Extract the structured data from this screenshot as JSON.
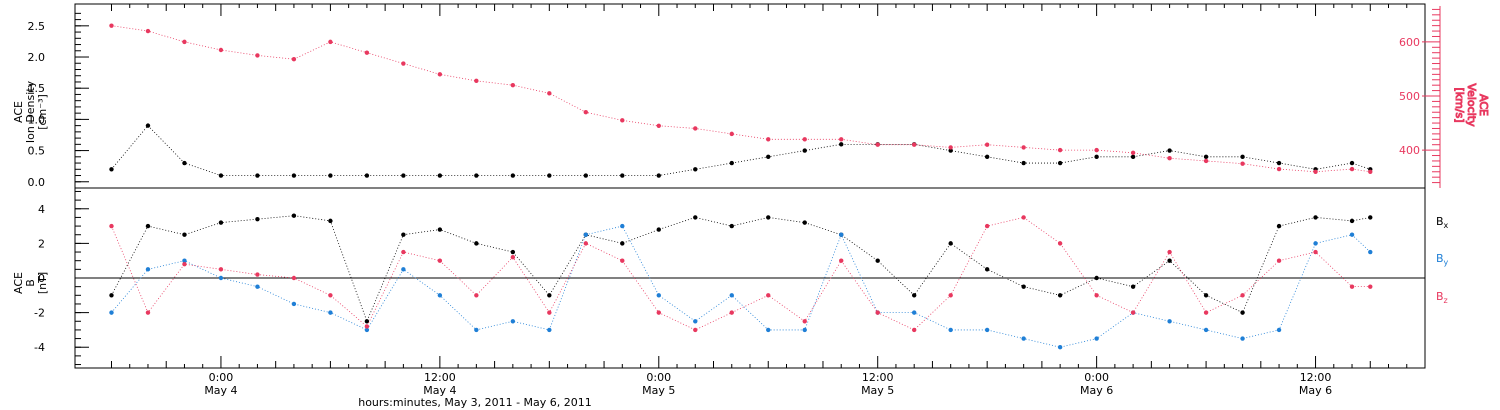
{
  "chart_data": [
    {
      "type": "scatter",
      "panel": "top",
      "ylabel_lines": [
        "ACE",
        "Ion Density",
        "[cm⁻³]"
      ],
      "ylim": [
        -0.1,
        2.85
      ],
      "yticks": [
        "0.0",
        "0.5",
        "1.0",
        "1.5",
        "2.0",
        "2.5"
      ],
      "y2label_lines": [
        "ACE",
        "Velocity",
        "[km/s]"
      ],
      "y2lim": [
        330,
        670
      ],
      "y2ticks": [
        "400",
        "500",
        "600"
      ],
      "series": [
        {
          "axis": "left",
          "color": "#000000",
          "x": [
            -6,
            -4,
            -2,
            0,
            2,
            4,
            6,
            8,
            10,
            12,
            14,
            16,
            18,
            20,
            22,
            24,
            26,
            28,
            30,
            32,
            34,
            36,
            38,
            40,
            42,
            44,
            46,
            48,
            50,
            52,
            54,
            56,
            58,
            60,
            62,
            63
          ],
          "y": [
            0.2,
            0.9,
            0.3,
            0.1,
            0.1,
            0.1,
            0.1,
            0.1,
            0.1,
            0.1,
            0.1,
            0.1,
            0.1,
            0.1,
            0.1,
            0.1,
            0.2,
            0.3,
            0.4,
            0.5,
            0.6,
            0.6,
            0.6,
            0.5,
            0.4,
            0.3,
            0.3,
            0.4,
            0.4,
            0.5,
            0.4,
            0.4,
            0.3,
            0.2,
            0.3,
            0.2
          ]
        },
        {
          "axis": "right",
          "color": "#e8385f",
          "x": [
            -6,
            -4,
            -2,
            0,
            2,
            4,
            6,
            8,
            10,
            12,
            14,
            16,
            18,
            20,
            22,
            24,
            26,
            28,
            30,
            32,
            34,
            36,
            38,
            40,
            42,
            44,
            46,
            48,
            50,
            52,
            54,
            56,
            58,
            60,
            62,
            63
          ],
          "y": [
            630,
            620,
            600,
            585,
            575,
            568,
            600,
            580,
            560,
            540,
            528,
            520,
            505,
            470,
            455,
            445,
            440,
            430,
            420,
            420,
            420,
            410,
            410,
            405,
            410,
            405,
            400,
            400,
            395,
            385,
            380,
            375,
            365,
            360,
            365,
            360
          ]
        }
      ]
    },
    {
      "type": "scatter",
      "panel": "bottom",
      "ylabel_lines": [
        "ACE",
        "B",
        "[nT]"
      ],
      "ylim": [
        -5.2,
        5.2
      ],
      "yticks": [
        "-4",
        "-2",
        "0",
        "2",
        "4"
      ],
      "legend": "right",
      "series": [
        {
          "color": "#000000",
          "x": [
            -6,
            -4,
            -2,
            0,
            2,
            4,
            6,
            8,
            10,
            12,
            14,
            16,
            18,
            20,
            22,
            24,
            26,
            28,
            30,
            32,
            34,
            36,
            38,
            40,
            42,
            44,
            46,
            48,
            50,
            52,
            54,
            56,
            58,
            60,
            62,
            63
          ],
          "y": [
            -1,
            3,
            2.5,
            3.2,
            3.4,
            3.6,
            3.3,
            -2.5,
            2.5,
            2.8,
            2,
            1.5,
            -1,
            2.5,
            2,
            2.8,
            3.5,
            3,
            3.5,
            3.2,
            2.5,
            1,
            -1,
            2,
            0.5,
            -0.5,
            -1,
            0,
            -0.5,
            1,
            -1,
            -2,
            3,
            3.5,
            3.3,
            3.5
          ]
        },
        {
          "color": "#1f7fd6",
          "x": [
            -6,
            -4,
            -2,
            0,
            2,
            4,
            6,
            8,
            10,
            12,
            14,
            16,
            18,
            20,
            22,
            24,
            26,
            28,
            30,
            32,
            34,
            36,
            38,
            40,
            42,
            44,
            46,
            48,
            50,
            52,
            54,
            56,
            58,
            60,
            62,
            63
          ],
          "y": [
            -2,
            0.5,
            1,
            0,
            -0.5,
            -1.5,
            -2,
            -3,
            0.5,
            -1,
            -3,
            -2.5,
            -3,
            2.5,
            3,
            -1,
            -2.5,
            -1,
            -3,
            -3,
            2.5,
            -2,
            -2,
            -3,
            -3,
            -3.5,
            -4,
            -3.5,
            -2,
            -2.5,
            -3,
            -3.5,
            -3,
            2,
            2.5,
            1.5
          ]
        },
        {
          "color": "#e8385f",
          "x": [
            -6,
            -4,
            -2,
            0,
            2,
            4,
            6,
            8,
            10,
            12,
            14,
            16,
            18,
            20,
            22,
            24,
            26,
            28,
            30,
            32,
            34,
            36,
            38,
            40,
            42,
            44,
            46,
            48,
            50,
            52,
            54,
            56,
            58,
            60,
            62,
            63
          ],
          "y": [
            3,
            -2,
            0.8,
            0.5,
            0.2,
            0,
            -1,
            -2.8,
            1.5,
            1,
            -1,
            1.2,
            -2,
            2,
            1,
            -2,
            -3,
            -2,
            -1,
            -2.5,
            1,
            -2,
            -3,
            -1,
            3,
            3.5,
            2,
            -1,
            -2,
            1.5,
            -2,
            -1,
            1,
            1.5,
            -0.5,
            -0.5
          ]
        }
      ]
    }
  ],
  "x_axis": {
    "xlim": [
      -8,
      66
    ],
    "tick_labels": [
      {
        "x": 0,
        "time": "0:00",
        "date": "May 4"
      },
      {
        "x": 12,
        "time": "12:00",
        "date": "May 4"
      },
      {
        "x": 24,
        "time": "0:00",
        "date": "May 5"
      },
      {
        "x": 36,
        "time": "12:00",
        "date": "May 5"
      },
      {
        "x": 48,
        "time": "0:00",
        "date": "May 6"
      },
      {
        "x": 60,
        "time": "12:00",
        "date": "May 6"
      }
    ],
    "xlabel": "hours:minutes,  May  3, 2011 - May  6, 2011"
  }
}
